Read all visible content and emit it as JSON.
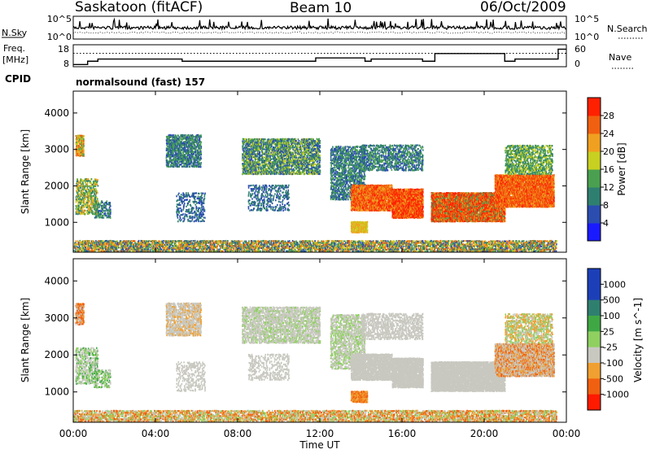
{
  "header": {
    "station": "Saskatoon (fitACF)",
    "beam": "Beam 10",
    "date": "06/Oct/2009"
  },
  "noise_panel": {
    "left_label": "N.Sky",
    "left_ticks": [
      "10^5",
      "10^0"
    ],
    "right_ticks": [
      "10^5",
      "10^0"
    ],
    "right_label": "N.Search"
  },
  "freq_panel": {
    "left_label_1": "Freq.",
    "left_label_2": "[MHz]",
    "left_ticks": [
      "18",
      "8"
    ],
    "right_ticks": [
      "60",
      "0"
    ],
    "right_label": "Nave"
  },
  "cpid": {
    "label": "CPID",
    "value": "normalsound (fast) 157"
  },
  "x_axis": {
    "title": "Time UT",
    "ticks": [
      "00:00",
      "04:00",
      "08:00",
      "12:00",
      "16:00",
      "20:00",
      "00:00"
    ]
  },
  "y_axis": {
    "title": "Slant Range [km]",
    "ticks": [
      "1000",
      "2000",
      "3000",
      "4000"
    ]
  },
  "power_colorbar": {
    "title": "Power [dB]",
    "labels": [
      "4",
      "8",
      "12",
      "16",
      "20",
      "24",
      "28"
    ],
    "colors": [
      "#1a1aff",
      "#2b4db0",
      "#2f7f70",
      "#4aa050",
      "#c8d020",
      "#f0a020",
      "#f06010",
      "#ff2000"
    ]
  },
  "velocity_colorbar": {
    "title": "Velocity [m s^-1]",
    "labels": [
      "1000",
      "500",
      "100",
      "25",
      "-25",
      "-100",
      "-500",
      "-1000"
    ],
    "colors": [
      "#1c3fb8",
      "#2f7f6f",
      "#3fa845",
      "#8fd060",
      "#c8c8c0",
      "#f0a030",
      "#f06010",
      "#ff1a00"
    ]
  },
  "chart_data": [
    {
      "type": "line",
      "title": "N.Sky / N.Search",
      "x": [
        0,
        4,
        8,
        12,
        16,
        20,
        24
      ],
      "xlim": [
        0,
        24
      ],
      "ylabel": "N.Sky",
      "scale": "log",
      "ylim": [
        1,
        100000
      ]
    },
    {
      "type": "line",
      "title": "Freq. / Nave",
      "xlim": [
        0,
        24
      ],
      "series": [
        {
          "name": "Freq.",
          "x": [
            0,
            0.7,
            1.2,
            5.0,
            5.3,
            8.5,
            8.8,
            11.5,
            11.8,
            14.2,
            14.5,
            17.0,
            17.6,
            21.0,
            21.5,
            23.6,
            24.0
          ],
          "values": [
            9,
            10.5,
            11.5,
            11.5,
            10.5,
            10.5,
            10.5,
            10.5,
            12,
            10.5,
            11.5,
            10.5,
            14,
            10.5,
            11.5,
            16,
            16
          ]
        },
        {
          "name": "Nave",
          "x": [
            0,
            24
          ],
          "values": [
            30,
            30
          ]
        }
      ]
    },
    {
      "type": "heatmap",
      "title": "Power [dB]",
      "xlabel": "Time UT",
      "ylabel": "Slant Range [km]",
      "xlim": [
        0,
        24
      ],
      "ylim": [
        180,
        4600
      ],
      "color_range": [
        0,
        30
      ]
    },
    {
      "type": "heatmap",
      "title": "Velocity [m s^-1]",
      "xlabel": "Time UT",
      "ylabel": "Slant Range [km]",
      "xlim": [
        0,
        24
      ],
      "ylim": [
        180,
        4600
      ],
      "color_range": [
        -1000,
        1000
      ]
    }
  ]
}
